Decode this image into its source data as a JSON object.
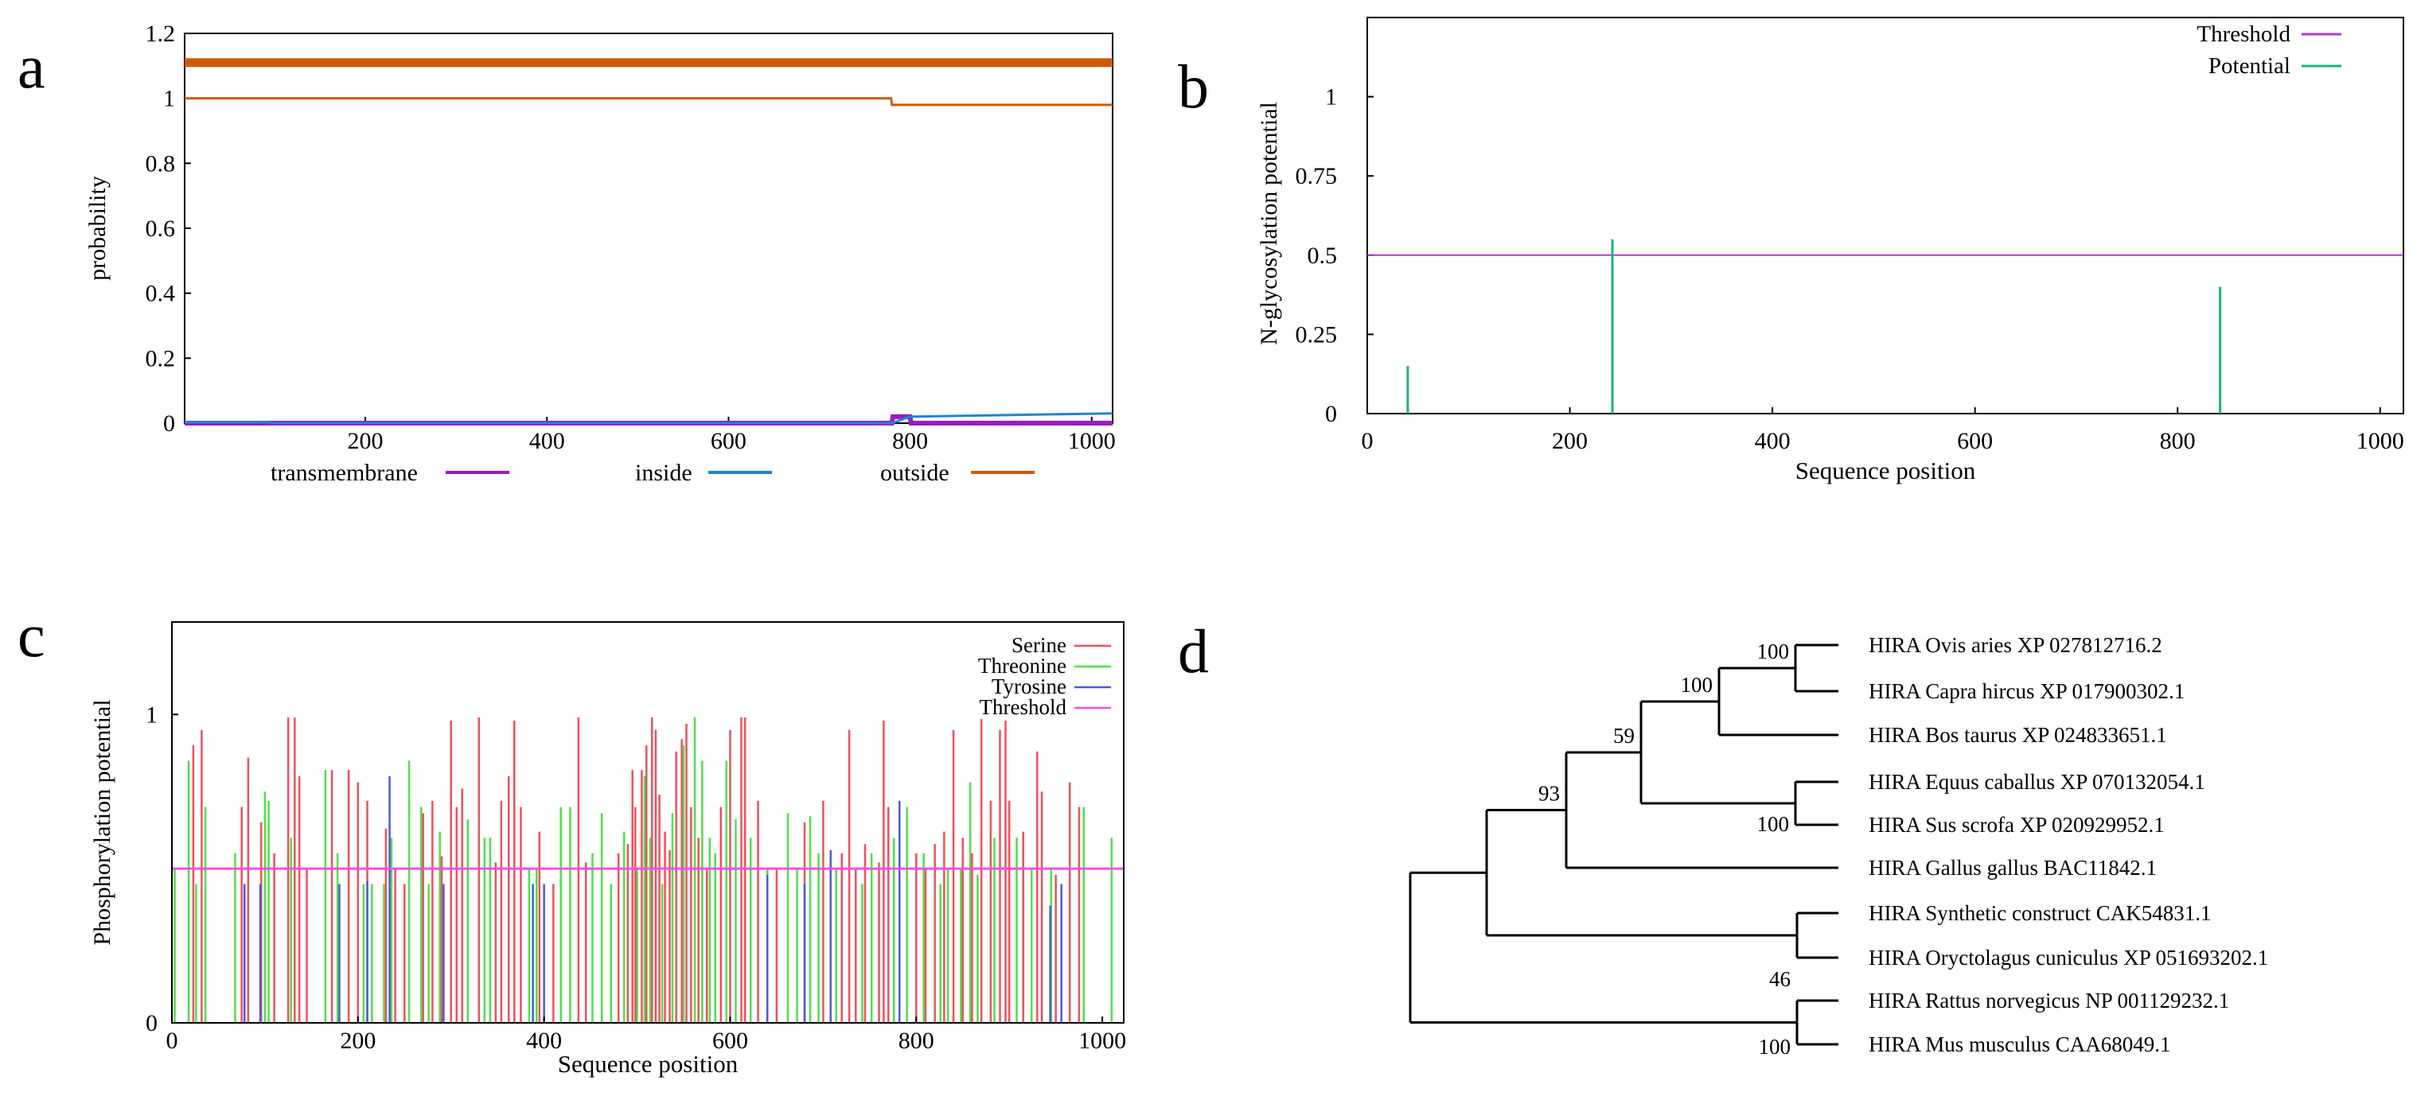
{
  "panels": {
    "a": "a",
    "b": "b",
    "c": "c",
    "d": "d"
  },
  "chart_data": [
    {
      "panel": "a",
      "type": "line",
      "title": "",
      "xlabel": "",
      "ylabel": "probability",
      "xlim": [
        1,
        1023
      ],
      "ylim": [
        0,
        1.2
      ],
      "xticks": [
        200,
        400,
        600,
        800,
        1000
      ],
      "yticks": [
        0,
        0.2,
        0.4,
        0.6,
        0.8,
        1,
        1.2
      ],
      "legend_position": "bottom",
      "colors": {
        "transmembrane": "#9a1bc2",
        "inside": "#1f86d1",
        "outside": "#cf5a0c"
      },
      "top_band": {
        "name": "outside",
        "x": [
          1,
          1023
        ],
        "y": 1.11
      },
      "series": [
        {
          "name": "transmembrane",
          "x": [
            1,
            780,
            781,
            800,
            801,
            1023
          ],
          "y": [
            0,
            0,
            0.02,
            0.02,
            0,
            0
          ]
        },
        {
          "name": "inside",
          "x": [
            1,
            95,
            96,
            780,
            800,
            1023
          ],
          "y": [
            0.003,
            0.003,
            0,
            0,
            0.02,
            0.03
          ]
        },
        {
          "name": "outside",
          "x": [
            1,
            779,
            780,
            1023
          ],
          "y": [
            1.0,
            1.0,
            0.98,
            0.98
          ]
        }
      ]
    },
    {
      "panel": "b",
      "type": "bar",
      "title": "",
      "xlabel": "Sequence position",
      "ylabel": "N-glycosylation potential",
      "xlim": [
        0,
        1023
      ],
      "ylim": [
        0,
        1.25
      ],
      "xticks": [
        0,
        200,
        400,
        600,
        800,
        1000
      ],
      "yticks": [
        0,
        0.25,
        0.5,
        0.75,
        1
      ],
      "legend_position": "top-right",
      "threshold": 0.5,
      "colors": {
        "threshold": "#b03ad8",
        "potential": "#20b07a"
      },
      "series": [
        {
          "name": "Threshold",
          "value": 0.5
        },
        {
          "name": "Potential",
          "x": [
            40,
            242,
            842
          ],
          "values": [
            0.15,
            0.55,
            0.4
          ]
        }
      ]
    },
    {
      "panel": "c",
      "type": "bar",
      "title": "",
      "xlabel": "Sequence position",
      "ylabel": "Phosphorylation potential",
      "xlim": [
        0,
        1023
      ],
      "ylim": [
        0,
        1.3
      ],
      "xticks": [
        0,
        200,
        400,
        600,
        800,
        1000
      ],
      "yticks": [
        0,
        1
      ],
      "legend_position": "top-right",
      "threshold": 0.5,
      "colors": {
        "serine": "#f0505a",
        "threonine": "#4ee04a",
        "tyrosine": "#4b58e0",
        "threshold": "#f050e8"
      },
      "series": [
        {
          "name": "Serine",
          "x": [
            23,
            32,
            75,
            82,
            96,
            110,
            125,
            132,
            137,
            145,
            172,
            190,
            200,
            210,
            230,
            240,
            250,
            270,
            280,
            290,
            300,
            306,
            312,
            330,
            348,
            354,
            362,
            368,
            375,
            395,
            410,
            437,
            445,
            480,
            490,
            495,
            498,
            505,
            510,
            516,
            520,
            524,
            530,
            535,
            542,
            548,
            553,
            558,
            566,
            575,
            590,
            600,
            612,
            616,
            630,
            650,
            680,
            700,
            720,
            728,
            735,
            745,
            760,
            765,
            770,
            800,
            810,
            820,
            830,
            840,
            850,
            860,
            870,
            880,
            890,
            896,
            900,
            915,
            930,
            935,
            950,
            965,
            975
          ],
          "values": [
            0.9,
            0.95,
            0.7,
            0.86,
            0.65,
            0.55,
            0.99,
            0.99,
            0.8,
            0.5,
            0.82,
            0.82,
            0.78,
            0.72,
            0.63,
            0.5,
            0.45,
            0.68,
            0.72,
            0.54,
            0.98,
            0.7,
            0.76,
            0.99,
            0.52,
            0.72,
            0.8,
            0.98,
            0.7,
            0.62,
            0.45,
            0.99,
            0.52,
            0.55,
            0.58,
            0.82,
            0.7,
            0.82,
            0.9,
            0.99,
            0.95,
            0.74,
            0.62,
            0.56,
            0.88,
            0.92,
            0.97,
            0.7,
            0.6,
            0.5,
            0.7,
            0.95,
            0.99,
            0.99,
            0.72,
            0.5,
            0.65,
            0.72,
            0.55,
            0.95,
            0.5,
            0.58,
            0.52,
            0.98,
            0.7,
            0.55,
            0.5,
            0.58,
            0.62,
            0.95,
            0.6,
            0.55,
            0.99,
            0.72,
            0.95,
            0.98,
            0.72,
            0.62,
            0.88,
            0.75,
            0.48,
            0.78,
            0.7
          ]
        },
        {
          "name": "Threonine",
          "x": [
            3,
            18,
            26,
            36,
            68,
            100,
            104,
            128,
            165,
            178,
            206,
            215,
            228,
            236,
            255,
            268,
            276,
            288,
            318,
            336,
            342,
            384,
            392,
            418,
            428,
            452,
            462,
            472,
            486,
            500,
            508,
            514,
            527,
            538,
            550,
            562,
            570,
            578,
            584,
            596,
            606,
            622,
            640,
            662,
            672,
            686,
            695,
            714,
            742,
            752,
            776,
            790,
            808,
            826,
            834,
            848,
            858,
            866,
            884,
            908,
            924,
            945,
            980,
            1010
          ],
          "values": [
            0.5,
            0.85,
            0.45,
            0.7,
            0.55,
            0.75,
            0.72,
            0.6,
            0.82,
            0.55,
            0.45,
            0.45,
            0.45,
            0.6,
            0.85,
            0.7,
            0.45,
            0.62,
            0.66,
            0.6,
            0.6,
            0.5,
            0.5,
            0.7,
            0.7,
            0.55,
            0.68,
            0.45,
            0.62,
            0.5,
            0.8,
            0.6,
            0.45,
            0.68,
            0.9,
            0.99,
            0.85,
            0.6,
            0.55,
            0.85,
            0.66,
            0.6,
            0.5,
            0.68,
            0.5,
            0.67,
            0.55,
            0.5,
            0.45,
            0.55,
            0.6,
            0.7,
            0.55,
            0.45,
            0.5,
            0.5,
            0.78,
            0.48,
            0.6,
            0.6,
            0.5,
            0.5,
            0.7,
            0.6
          ]
        },
        {
          "name": "Tyrosine",
          "x": [
            78,
            95,
            180,
            210,
            234,
            292,
            388,
            400,
            640,
            680,
            708,
            782,
            944,
            956
          ],
          "values": [
            0.45,
            0.45,
            0.45,
            0.46,
            0.8,
            0.45,
            0.45,
            0.45,
            0.48,
            0.45,
            0.56,
            0.72,
            0.38,
            0.45
          ]
        },
        {
          "name": "Threshold",
          "value": 0.5
        }
      ]
    },
    {
      "panel": "d",
      "type": "tree",
      "title": "",
      "leaves": [
        "HIRA Ovis aries XP 027812716.2",
        "HIRA Capra hircus XP 017900302.1",
        "HIRA Bos taurus XP 024833651.1",
        "HIRA Equus caballus XP 070132054.1",
        "HIRA Sus scrofa XP 020929952.1",
        "HIRA Gallus gallus BAC11842.1",
        "HIRA Synthetic construct CAK54831.1",
        "HIRA Oryctolagus cuniculus XP 051693202.1",
        "HIRA Rattus norvegicus NP 001129232.1",
        "HIRA Mus musculus CAA68049.1"
      ],
      "bootstrap": [
        {
          "node": "ovis_capra",
          "value": "100"
        },
        {
          "node": "ovis_capra_bos",
          "value": "100"
        },
        {
          "node": "ruminants_equus_sus",
          "value": "59"
        },
        {
          "node": "equus_sus",
          "value": "100"
        },
        {
          "node": "mammals_gallus",
          "value": "93"
        },
        {
          "node": "synthetic_oryctolagus",
          "value": "46"
        },
        {
          "node": "rattus_mus",
          "value": "100"
        }
      ]
    }
  ]
}
